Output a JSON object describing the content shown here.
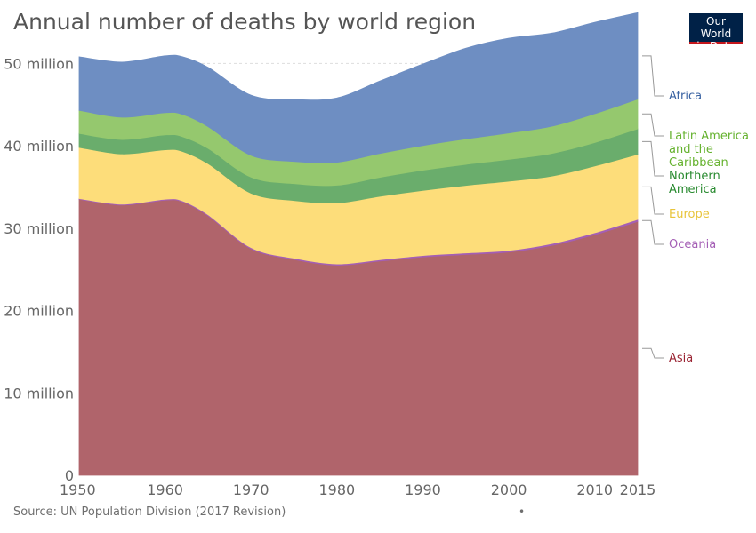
{
  "title": "Annual number of deaths by world region",
  "logo": {
    "line1": "Our World",
    "line2": "in Data",
    "bg": "#002147",
    "accent": "#c4161c"
  },
  "source": "Source: UN Population Division (2017 Revision)",
  "footer_dot": "•",
  "chart_data": {
    "type": "area",
    "stacked": true,
    "title": "Annual number of deaths by world region",
    "x": [
      1950,
      1955,
      1960,
      1962,
      1965,
      1970,
      1975,
      1980,
      1985,
      1990,
      1995,
      2000,
      2005,
      2010,
      2015
    ],
    "xlim": [
      1950,
      2015
    ],
    "ylim": [
      0,
      55000000
    ],
    "x_ticks": [
      {
        "value": 1950,
        "label": "1950"
      },
      {
        "value": 1960,
        "label": "1960"
      },
      {
        "value": 1970,
        "label": "1970"
      },
      {
        "value": 1980,
        "label": "1980"
      },
      {
        "value": 1990,
        "label": "1990"
      },
      {
        "value": 2000,
        "label": "2000"
      },
      {
        "value": 2010,
        "label": "2010"
      },
      {
        "value": 2015,
        "label": "2015"
      }
    ],
    "y_ticks": [
      {
        "value": 0,
        "label": "0"
      },
      {
        "value": 10000000,
        "label": "10 million"
      },
      {
        "value": 20000000,
        "label": "20 million"
      },
      {
        "value": 30000000,
        "label": "30 million"
      },
      {
        "value": 40000000,
        "label": "40 million"
      },
      {
        "value": 50000000,
        "label": "50 million"
      }
    ],
    "grid": true,
    "legend_placement": "right",
    "series": [
      {
        "name": "Asia",
        "color": "#b0646b",
        "label_color": "#9a2433",
        "values": [
          33500000,
          32800000,
          33400000,
          33200000,
          31500000,
          27500000,
          26200000,
          25500000,
          26000000,
          26500000,
          26800000,
          27100000,
          27900000,
          29200000,
          30800000
        ]
      },
      {
        "name": "Oceania",
        "color": "#a45fb5",
        "label_color": "#a45fb5",
        "values": [
          100000,
          110000,
          120000,
          120000,
          130000,
          140000,
          150000,
          160000,
          170000,
          180000,
          190000,
          200000,
          220000,
          240000,
          260000
        ]
      },
      {
        "name": "Europe",
        "color": "#fddd7a",
        "label_color": "#e8c43a",
        "values": [
          6200000,
          6100000,
          6000000,
          6000000,
          6200000,
          6600000,
          7000000,
          7400000,
          7700000,
          7900000,
          8200000,
          8400000,
          8200000,
          8100000,
          7900000
        ]
      },
      {
        "name": "Northern America",
        "color": "#6aad6c",
        "label_color": "#288a2f",
        "values": [
          1700000,
          1750000,
          1800000,
          1800000,
          1850000,
          1950000,
          2050000,
          2150000,
          2300000,
          2450000,
          2550000,
          2650000,
          2750000,
          2850000,
          3100000
        ]
      },
      {
        "name": "Latin America and the Caribbean",
        "color": "#95c86e",
        "label_color": "#65b22e",
        "values": [
          2800000,
          2700000,
          2700000,
          2700000,
          2650000,
          2650000,
          2700000,
          2800000,
          2900000,
          3000000,
          3100000,
          3200000,
          3300000,
          3500000,
          3600000
        ]
      },
      {
        "name": "Africa",
        "color": "#6e8ec2",
        "label_color": "#3a63a3",
        "values": [
          6500000,
          6700000,
          6900000,
          7000000,
          7200000,
          7300000,
          7500000,
          7800000,
          8800000,
          9900000,
          11000000,
          11500000,
          11300000,
          11100000,
          10500000
        ]
      }
    ]
  }
}
